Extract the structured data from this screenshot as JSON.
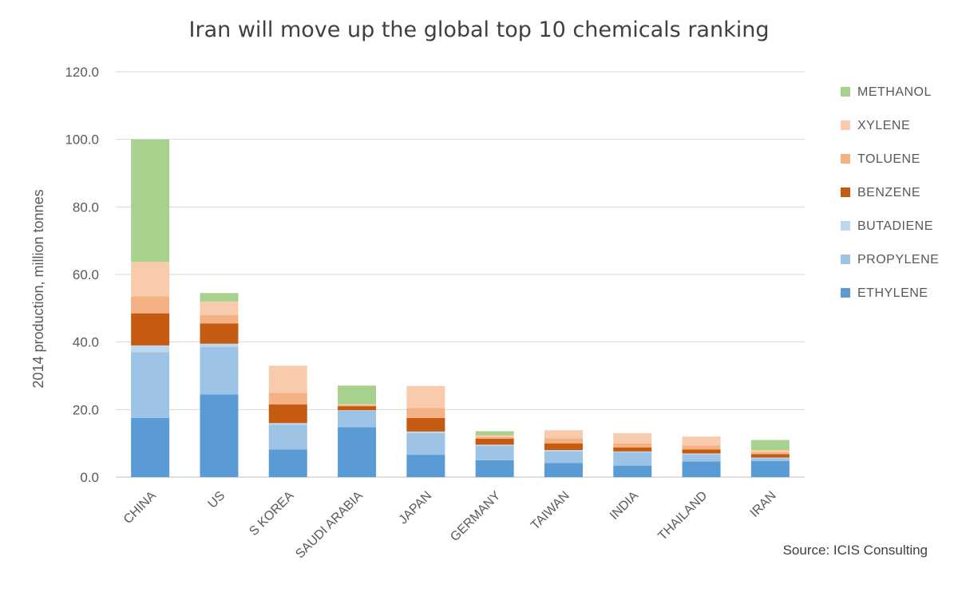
{
  "chart_data": {
    "type": "bar",
    "stacked": true,
    "title": "Iran will move up the global top 10 chemicals ranking",
    "ylabel": "2014 production, million tonnes",
    "xlabel": "",
    "ylim": [
      0,
      120
    ],
    "yticks": [
      "0.0",
      "20.0",
      "40.0",
      "60.0",
      "80.0",
      "100.0",
      "120.0"
    ],
    "grid": true,
    "legend_position": "right",
    "categories": [
      "CHINA",
      "US",
      "S KOREA",
      "SAUDI ARABIA",
      "JAPAN",
      "GERMANY",
      "TAIWAN",
      "INDIA",
      "THAILAND",
      "IRAN"
    ],
    "series": [
      {
        "name": "ETHYLENE",
        "color": "#5b9bd5",
        "values": [
          17.5,
          24.5,
          8.2,
          14.8,
          6.6,
          5.0,
          4.2,
          3.4,
          4.6,
          4.8
        ]
      },
      {
        "name": "PROPYLENE",
        "color": "#9dc3e6",
        "values": [
          19.5,
          14.0,
          7.3,
          4.8,
          6.4,
          4.2,
          3.4,
          4.0,
          2.1,
          0.8
        ]
      },
      {
        "name": "BUTADIENE",
        "color": "#bdd7ee",
        "values": [
          2.0,
          1.0,
          0.5,
          0.2,
          0.5,
          0.4,
          0.4,
          0.2,
          0.3,
          0.2
        ]
      },
      {
        "name": "BENZENE",
        "color": "#c55a11",
        "values": [
          9.5,
          6.0,
          5.5,
          1.2,
          4.0,
          1.8,
          2.0,
          1.2,
          1.2,
          1.0
        ]
      },
      {
        "name": "TOLUENE",
        "color": "#f4b183",
        "values": [
          5.0,
          2.5,
          3.5,
          0.3,
          3.0,
          0.5,
          1.5,
          1.2,
          1.2,
          0.6
        ]
      },
      {
        "name": "XYLENE",
        "color": "#f8cbad",
        "values": [
          10.2,
          4.0,
          8.0,
          0.3,
          6.5,
          0.5,
          2.4,
          3.0,
          2.6,
          0.6
        ]
      },
      {
        "name": "METHANOL",
        "color": "#a9d18e",
        "values": [
          36.3,
          2.5,
          0.0,
          5.5,
          0.0,
          1.2,
          0.0,
          0.0,
          0.0,
          3.0
        ]
      }
    ],
    "source": "Source: ICIS Consulting"
  }
}
